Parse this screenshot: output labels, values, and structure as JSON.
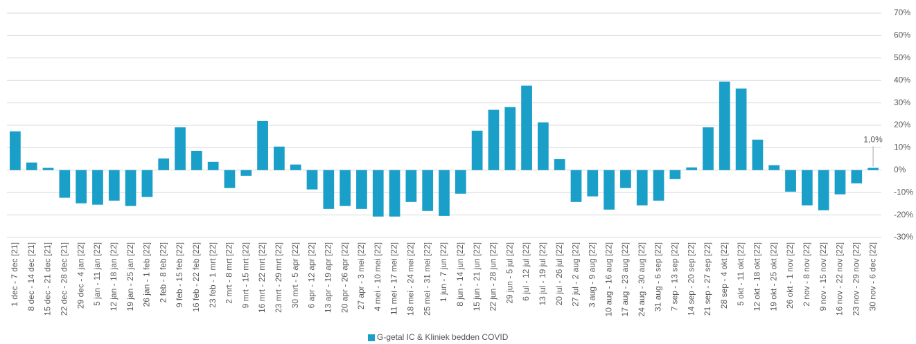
{
  "chart_data": {
    "type": "bar",
    "categories": [
      "1 dec - 7 dec [21]",
      "8 dec - 14 dec [21]",
      "15 dec - 21 dec [21]",
      "22 dec - 28 dec [21]",
      "29 dec - 4 jan [22]",
      "5 jan - 11 jan [22]",
      "12 jan - 18 jan [22]",
      "19 jan - 25 jan [22]",
      "26 jan - 1 feb [22]",
      "2 feb - 8 feb [22]",
      "9 feb - 15 feb [22]",
      "16 feb - 22 feb [22]",
      "23 feb - 1 mrt [22]",
      "2 mrt - 8 mrt [22]",
      "9 mrt - 15 mrt [22]",
      "16 mrt - 22 mrt [22]",
      "23 mrt - 29 mrt [22]",
      "30 mrt - 5 apr [22]",
      "6 apr - 12 apr [22]",
      "13 apr - 19 apr [22]",
      "20 apr - 26 apr [22]",
      "27 apr - 3 mei [22]",
      "4 mei - 10 mei [22]",
      "11 mei - 17 mei [22]",
      "18 mei - 24 mei [22]",
      "25 mei - 31 mei [22]",
      "1 jun - 7 jun [22]",
      "8 jun - 14 jun [22]",
      "15 jun - 21 jun [22]",
      "22 jun - 28 jun [22]",
      "29 jun - 5 jul [22]",
      "6 jul - 12 jul [22]",
      "13 jul - 19 jul [22]",
      "20 jul - 26 jul [22]",
      "27 jul - 2 aug [22]",
      "3 aug - 9 aug [22]",
      "10 aug - 16 aug [22]",
      "17 aug - 23 aug [22]",
      "24 aug - 30 aug [22]",
      "31 aug - 6 sep [22]",
      "7 sep - 13 sep [22]",
      "14 sep - 20 sep [22]",
      "21 sep - 27 sep [22]",
      "28 sep - 4 okt [22]",
      "5 okt - 11 okt [22]",
      "12 okt - 18 okt [22]",
      "19 okt - 25 okt [22]",
      "26 okt - 1 nov [22]",
      "2 nov - 8 nov [22]",
      "9 nov - 15 nov [22]",
      "16 nov - 22 nov [22]",
      "23 nov - 29 nov [22]",
      "30 nov - 6 dec [22]"
    ],
    "series": [
      {
        "name": "G-getal IC & Kliniek bedden  COVID",
        "color": "#1a9fc9",
        "values": [
          17.3,
          3.4,
          1,
          -12.3,
          -14.8,
          -15.4,
          -13.6,
          -16,
          -12,
          5.2,
          19.1,
          8.6,
          3.7,
          -8,
          -2.5,
          21.9,
          10.5,
          2.5,
          -8.6,
          -17.3,
          -16,
          -17.3,
          -20.7,
          -20.7,
          -14.2,
          -18.2,
          -20.4,
          -10.5,
          17.6,
          26.9,
          28.1,
          37.7,
          21.3,
          4.9,
          -14.2,
          -11.7,
          -17.6,
          -8,
          -15.7,
          -13.6,
          -4,
          1.2,
          19.1,
          39.5,
          36.4,
          13.6,
          2.2,
          -9.6,
          -15.7,
          -17.9,
          -10.8,
          -5.9,
          1.0
        ],
        "value_labels": [
          null,
          null,
          null,
          null,
          null,
          null,
          null,
          null,
          null,
          null,
          null,
          null,
          null,
          null,
          null,
          null,
          null,
          null,
          null,
          null,
          null,
          null,
          null,
          null,
          null,
          null,
          null,
          null,
          null,
          null,
          null,
          null,
          null,
          null,
          null,
          null,
          null,
          null,
          null,
          null,
          null,
          null,
          null,
          null,
          null,
          null,
          null,
          null,
          null,
          null,
          null,
          null,
          "1,0%"
        ]
      }
    ],
    "ylim": [
      -30,
      70
    ],
    "yticks": [
      {
        "value": -30,
        "label": "-30%"
      },
      {
        "value": -20,
        "label": "-20%"
      },
      {
        "value": -10,
        "label": "-10%"
      },
      {
        "value": 0,
        "label": "0%"
      },
      {
        "value": 10,
        "label": "10%"
      },
      {
        "value": 20,
        "label": "20%"
      },
      {
        "value": 30,
        "label": "30%"
      },
      {
        "value": 40,
        "label": "40%"
      },
      {
        "value": 50,
        "label": "50%"
      },
      {
        "value": 60,
        "label": "60%"
      },
      {
        "value": 70,
        "label": "70%"
      }
    ],
    "grid": true,
    "legend": "bottom"
  }
}
